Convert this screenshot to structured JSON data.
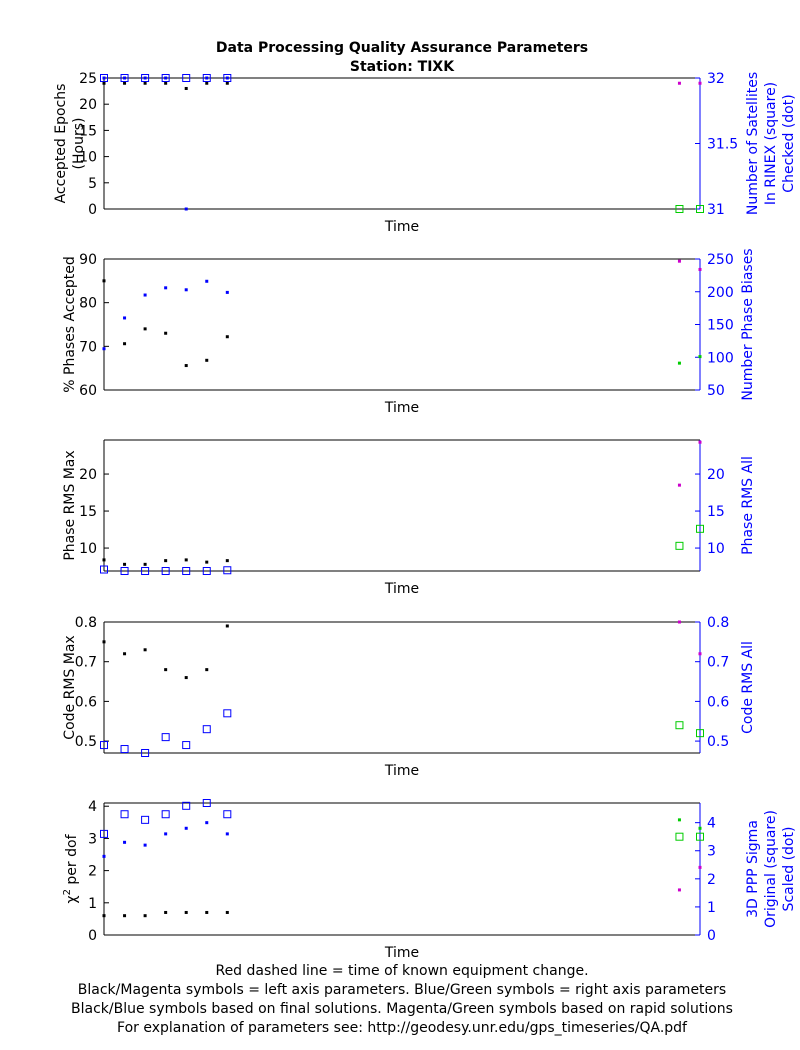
{
  "title_line1": "Data Processing Quality Assurance Parameters",
  "title_line2": "Station: TIXK",
  "footer": [
    "Red dashed line = time of known equipment change.",
    "Black/Magenta symbols = left axis parameters. Blue/Green symbols = right axis parameters",
    "Black/Blue symbols based on final solutions.  Magenta/Green symbols based on rapid solutions",
    "For explanation of parameters see: http://geodesy.unr.edu/gps_timeseries/QA.pdf"
  ],
  "colors": {
    "final_left": "#000000",
    "rapid_left": "#cc00cc",
    "final_right": "#0000ff",
    "rapid_right": "#00cc00",
    "right_axis": "#0000ff"
  },
  "chart_data": [
    {
      "type": "scatter",
      "xlabel": "Time",
      "ylabel": [
        "Accepted Epochs",
        "(Hours)"
      ],
      "y2label": [
        "Number of Satellites",
        "In RINEX (square)",
        "Checked (dot)"
      ],
      "ylim": [
        0,
        25
      ],
      "yticks": [
        0,
        5,
        10,
        15,
        20,
        25
      ],
      "y2lim": [
        31,
        32
      ],
      "y2ticks": [
        31,
        31.5,
        32
      ],
      "series": [
        {
          "axis": "left",
          "solution": "final",
          "marker": "dot",
          "x": [
            0,
            1,
            2,
            3,
            4,
            5,
            6
          ],
          "y": [
            24,
            24,
            24,
            24,
            23,
            24,
            24
          ]
        },
        {
          "axis": "left",
          "solution": "rapid",
          "marker": "dot",
          "x": [
            28,
            29
          ],
          "y": [
            24,
            24
          ]
        },
        {
          "axis": "right",
          "solution": "final",
          "marker": "square",
          "x": [
            0,
            1,
            2,
            3,
            4,
            5,
            6
          ],
          "y": [
            32,
            32,
            32,
            32,
            32,
            32,
            32
          ]
        },
        {
          "axis": "right",
          "solution": "final",
          "marker": "dot",
          "x": [
            0,
            1,
            2,
            3,
            4,
            5,
            6
          ],
          "y": [
            32,
            32,
            32,
            32,
            31,
            32,
            32
          ]
        },
        {
          "axis": "right",
          "solution": "rapid",
          "marker": "square",
          "x": [
            28,
            29
          ],
          "y": [
            31,
            31
          ]
        }
      ]
    },
    {
      "type": "scatter",
      "xlabel": "Time",
      "ylabel": [
        "% Phases Accepted"
      ],
      "y2label": [
        "Number Phase Biases"
      ],
      "ylim": [
        60,
        90
      ],
      "yticks": [
        60,
        70,
        80,
        90
      ],
      "y2lim": [
        50,
        250
      ],
      "y2ticks": [
        50,
        100,
        150,
        200,
        250
      ],
      "series": [
        {
          "axis": "left",
          "solution": "final",
          "marker": "dot",
          "x": [
            0,
            1,
            2,
            3,
            4,
            5,
            6
          ],
          "y": [
            85,
            70.6,
            74,
            73,
            65.6,
            66.8,
            72.2
          ]
        },
        {
          "axis": "left",
          "solution": "rapid",
          "marker": "dot",
          "x": [
            28,
            29
          ],
          "y": [
            89.5,
            87.6
          ]
        },
        {
          "axis": "right",
          "solution": "final",
          "marker": "dot",
          "x": [
            0,
            1,
            2,
            3,
            4,
            5,
            6
          ],
          "y": [
            113,
            160,
            195,
            206,
            203,
            216,
            199
          ]
        },
        {
          "axis": "right",
          "solution": "rapid",
          "marker": "dot",
          "x": [
            28,
            29
          ],
          "y": [
            91,
            101
          ]
        }
      ]
    },
    {
      "type": "scatter",
      "xlabel": "Time",
      "ylabel": [
        "Phase RMS Max"
      ],
      "y2label": [
        "Phase RMS All"
      ],
      "ylim": [
        6.9,
        24.6
      ],
      "yticks": [
        10,
        15,
        20
      ],
      "y2lim": [
        6.9,
        24.6
      ],
      "y2ticks": [
        10,
        15,
        20
      ],
      "series": [
        {
          "axis": "left",
          "solution": "final",
          "marker": "dot",
          "x": [
            0,
            1,
            2,
            3,
            4,
            5,
            6
          ],
          "y": [
            8.4,
            7.8,
            7.8,
            8.3,
            8.4,
            8.1,
            8.3
          ]
        },
        {
          "axis": "left",
          "solution": "rapid",
          "marker": "dot",
          "x": [
            28,
            29
          ],
          "y": [
            18.5,
            24.3
          ]
        },
        {
          "axis": "right",
          "solution": "final",
          "marker": "square",
          "x": [
            0,
            1,
            2,
            3,
            4,
            5,
            6
          ],
          "y": [
            7.1,
            6.9,
            6.9,
            6.9,
            6.9,
            6.9,
            7.0
          ]
        },
        {
          "axis": "right",
          "solution": "rapid",
          "marker": "square",
          "x": [
            28,
            29
          ],
          "y": [
            10.3,
            12.6
          ]
        }
      ]
    },
    {
      "type": "scatter",
      "xlabel": "Time",
      "ylabel": [
        "Code RMS Max"
      ],
      "y2label": [
        "Code RMS All"
      ],
      "ylim": [
        0.47,
        0.8
      ],
      "yticks": [
        0.5,
        0.6,
        0.7,
        0.8
      ],
      "y2lim": [
        0.47,
        0.8
      ],
      "y2ticks": [
        0.5,
        0.6,
        0.7,
        0.8
      ],
      "series": [
        {
          "axis": "left",
          "solution": "final",
          "marker": "dot",
          "x": [
            0,
            1,
            2,
            3,
            4,
            5,
            6
          ],
          "y": [
            0.75,
            0.72,
            0.73,
            0.68,
            0.66,
            0.68,
            0.79
          ]
        },
        {
          "axis": "left",
          "solution": "rapid",
          "marker": "dot",
          "x": [
            28,
            29
          ],
          "y": [
            0.8,
            0.72
          ]
        },
        {
          "axis": "right",
          "solution": "final",
          "marker": "square",
          "x": [
            0,
            1,
            2,
            3,
            4,
            5,
            6
          ],
          "y": [
            0.49,
            0.48,
            0.47,
            0.51,
            0.49,
            0.53,
            0.57
          ]
        },
        {
          "axis": "right",
          "solution": "rapid",
          "marker": "square",
          "x": [
            28,
            29
          ],
          "y": [
            0.54,
            0.52
          ]
        }
      ]
    },
    {
      "type": "scatter",
      "xlabel": "Time",
      "ylabel": [
        "χ",
        "2",
        " per dof"
      ],
      "y2label": [
        "3D PPP Sigma",
        "Original (square)",
        "Scaled (dot)"
      ],
      "ylim": [
        0,
        4.1
      ],
      "yticks": [
        0,
        1,
        2,
        3,
        4
      ],
      "y2lim": [
        0,
        4.7
      ],
      "y2ticks": [
        0,
        1,
        2,
        3,
        4
      ],
      "series": [
        {
          "axis": "left",
          "solution": "final",
          "marker": "dot",
          "x": [
            0,
            1,
            2,
            3,
            4,
            5,
            6
          ],
          "y": [
            0.6,
            0.6,
            0.6,
            0.7,
            0.7,
            0.7,
            0.7
          ]
        },
        {
          "axis": "left",
          "solution": "rapid",
          "marker": "dot",
          "x": [
            28,
            29
          ],
          "y": [
            1.4,
            2.1
          ]
        },
        {
          "axis": "right",
          "solution": "final",
          "marker": "square",
          "x": [
            0,
            1,
            2,
            3,
            4,
            5,
            6
          ],
          "y": [
            3.6,
            4.3,
            4.1,
            4.3,
            4.6,
            4.7,
            4.3
          ]
        },
        {
          "axis": "right",
          "solution": "final",
          "marker": "dot",
          "x": [
            0,
            1,
            2,
            3,
            4,
            5,
            6
          ],
          "y": [
            2.8,
            3.3,
            3.2,
            3.6,
            3.8,
            4.0,
            3.6
          ]
        },
        {
          "axis": "right",
          "solution": "rapid",
          "marker": "square",
          "x": [
            28,
            29
          ],
          "y": [
            3.5,
            3.5
          ]
        },
        {
          "axis": "right",
          "solution": "rapid",
          "marker": "dot",
          "x": [
            28,
            29
          ],
          "y": [
            4.1,
            3.8
          ]
        }
      ]
    }
  ]
}
